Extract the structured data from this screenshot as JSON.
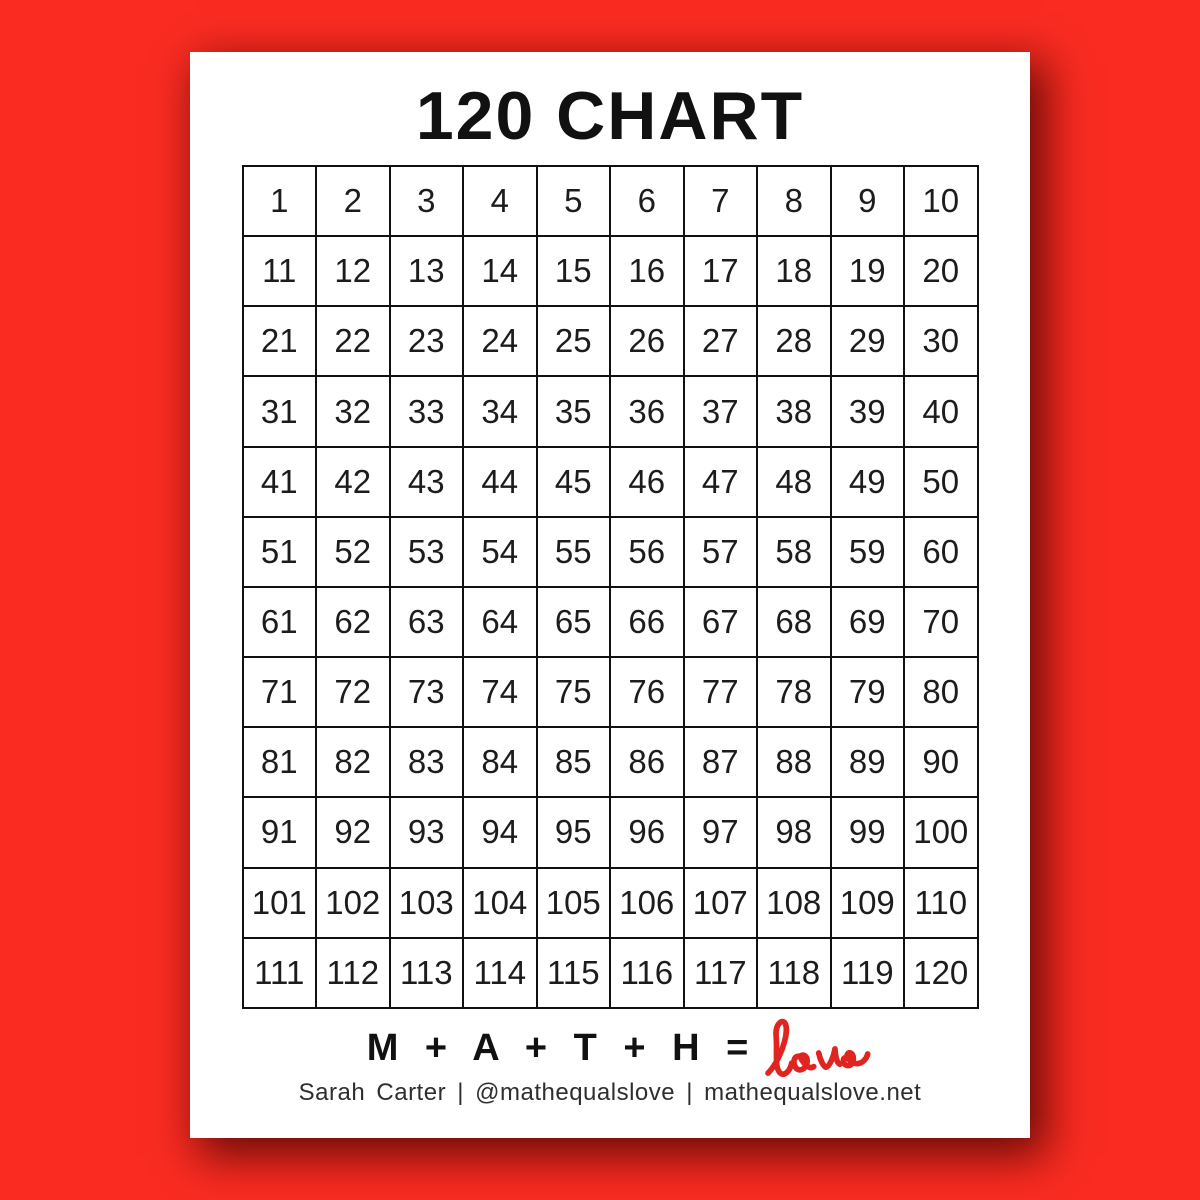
{
  "page": {
    "title": "120 CHART"
  },
  "grid": {
    "rows": [
      [
        1,
        2,
        3,
        4,
        5,
        6,
        7,
        8,
        9,
        10
      ],
      [
        11,
        12,
        13,
        14,
        15,
        16,
        17,
        18,
        19,
        20
      ],
      [
        21,
        22,
        23,
        24,
        25,
        26,
        27,
        28,
        29,
        30
      ],
      [
        31,
        32,
        33,
        34,
        35,
        36,
        37,
        38,
        39,
        40
      ],
      [
        41,
        42,
        43,
        44,
        45,
        46,
        47,
        48,
        49,
        50
      ],
      [
        51,
        52,
        53,
        54,
        55,
        56,
        57,
        58,
        59,
        60
      ],
      [
        61,
        62,
        63,
        64,
        65,
        66,
        67,
        68,
        69,
        70
      ],
      [
        71,
        72,
        73,
        74,
        75,
        76,
        77,
        78,
        79,
        80
      ],
      [
        81,
        82,
        83,
        84,
        85,
        86,
        87,
        88,
        89,
        90
      ],
      [
        91,
        92,
        93,
        94,
        95,
        96,
        97,
        98,
        99,
        100
      ],
      [
        101,
        102,
        103,
        104,
        105,
        106,
        107,
        108,
        109,
        110
      ],
      [
        111,
        112,
        113,
        114,
        115,
        116,
        117,
        118,
        119,
        120
      ]
    ]
  },
  "footer": {
    "equation": "M + A + T + H =",
    "love_word": "love",
    "byline": "Sarah Carter | @mathequalslove | mathequalslove.net"
  },
  "colors": {
    "background_red": "#fa2c22",
    "love_red": "#e02520",
    "ink": "#111111"
  }
}
